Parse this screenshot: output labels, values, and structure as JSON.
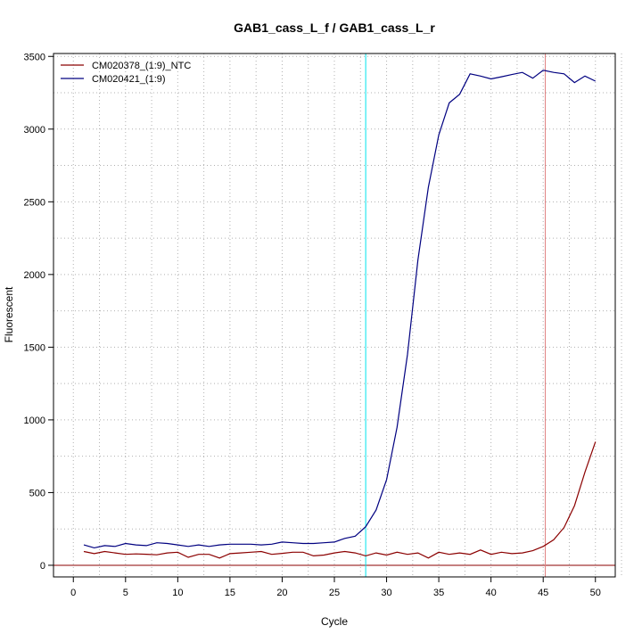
{
  "chart_data": {
    "type": "line",
    "title": "GAB1_cass_L_f / GAB1_cass_L_r",
    "xlabel": "Cycle",
    "ylabel": "Fluorescent",
    "xlim": [
      -1.9,
      51.9
    ],
    "ylim": [
      -80,
      3520
    ],
    "xticks": [
      0,
      5,
      10,
      15,
      20,
      25,
      30,
      35,
      40,
      45,
      50
    ],
    "yticks": [
      0,
      500,
      1000,
      1500,
      2000,
      2500,
      3000,
      3500
    ],
    "grid": true,
    "legend_position": "top-left",
    "baseline": {
      "y": 0,
      "color": "#8b0000"
    },
    "vlines": [
      {
        "x": 28,
        "color": "#00e5ee"
      },
      {
        "x": 45.2,
        "color": "#e08080"
      }
    ],
    "series": [
      {
        "name": "CM020378_(1:9)_NTC",
        "color": "#8b0000",
        "x": [
          1,
          2,
          3,
          4,
          5,
          6,
          7,
          8,
          9,
          10,
          11,
          12,
          13,
          14,
          15,
          16,
          17,
          18,
          19,
          20,
          21,
          22,
          23,
          24,
          25,
          26,
          27,
          28,
          29,
          30,
          31,
          32,
          33,
          34,
          35,
          36,
          37,
          38,
          39,
          40,
          41,
          42,
          43,
          44,
          45,
          46,
          47,
          48,
          49,
          50
        ],
        "values": [
          95,
          80,
          95,
          85,
          75,
          78,
          76,
          72,
          85,
          90,
          55,
          75,
          75,
          50,
          80,
          85,
          90,
          95,
          75,
          82,
          90,
          90,
          65,
          70,
          85,
          95,
          85,
          65,
          85,
          70,
          90,
          75,
          85,
          50,
          90,
          75,
          85,
          75,
          105,
          75,
          90,
          80,
          85,
          100,
          130,
          175,
          260,
          410,
          640,
          850
        ]
      },
      {
        "name": "CM020421_(1:9)",
        "color": "#000080",
        "x": [
          1,
          2,
          3,
          4,
          5,
          6,
          7,
          8,
          9,
          10,
          11,
          12,
          13,
          14,
          15,
          16,
          17,
          18,
          19,
          20,
          21,
          22,
          23,
          24,
          25,
          26,
          27,
          28,
          29,
          30,
          31,
          32,
          33,
          34,
          35,
          36,
          37,
          38,
          39,
          40,
          41,
          42,
          43,
          44,
          45,
          46,
          47,
          48,
          49,
          50
        ],
        "values": [
          140,
          120,
          135,
          130,
          150,
          140,
          135,
          155,
          150,
          140,
          130,
          140,
          130,
          140,
          145,
          145,
          145,
          140,
          145,
          160,
          155,
          150,
          150,
          155,
          160,
          185,
          200,
          265,
          380,
          590,
          950,
          1450,
          2100,
          2600,
          2960,
          3180,
          3240,
          3380,
          3365,
          3345,
          3360,
          3375,
          3390,
          3350,
          3405,
          3390,
          3380,
          3320,
          3365,
          3330
        ]
      }
    ]
  }
}
